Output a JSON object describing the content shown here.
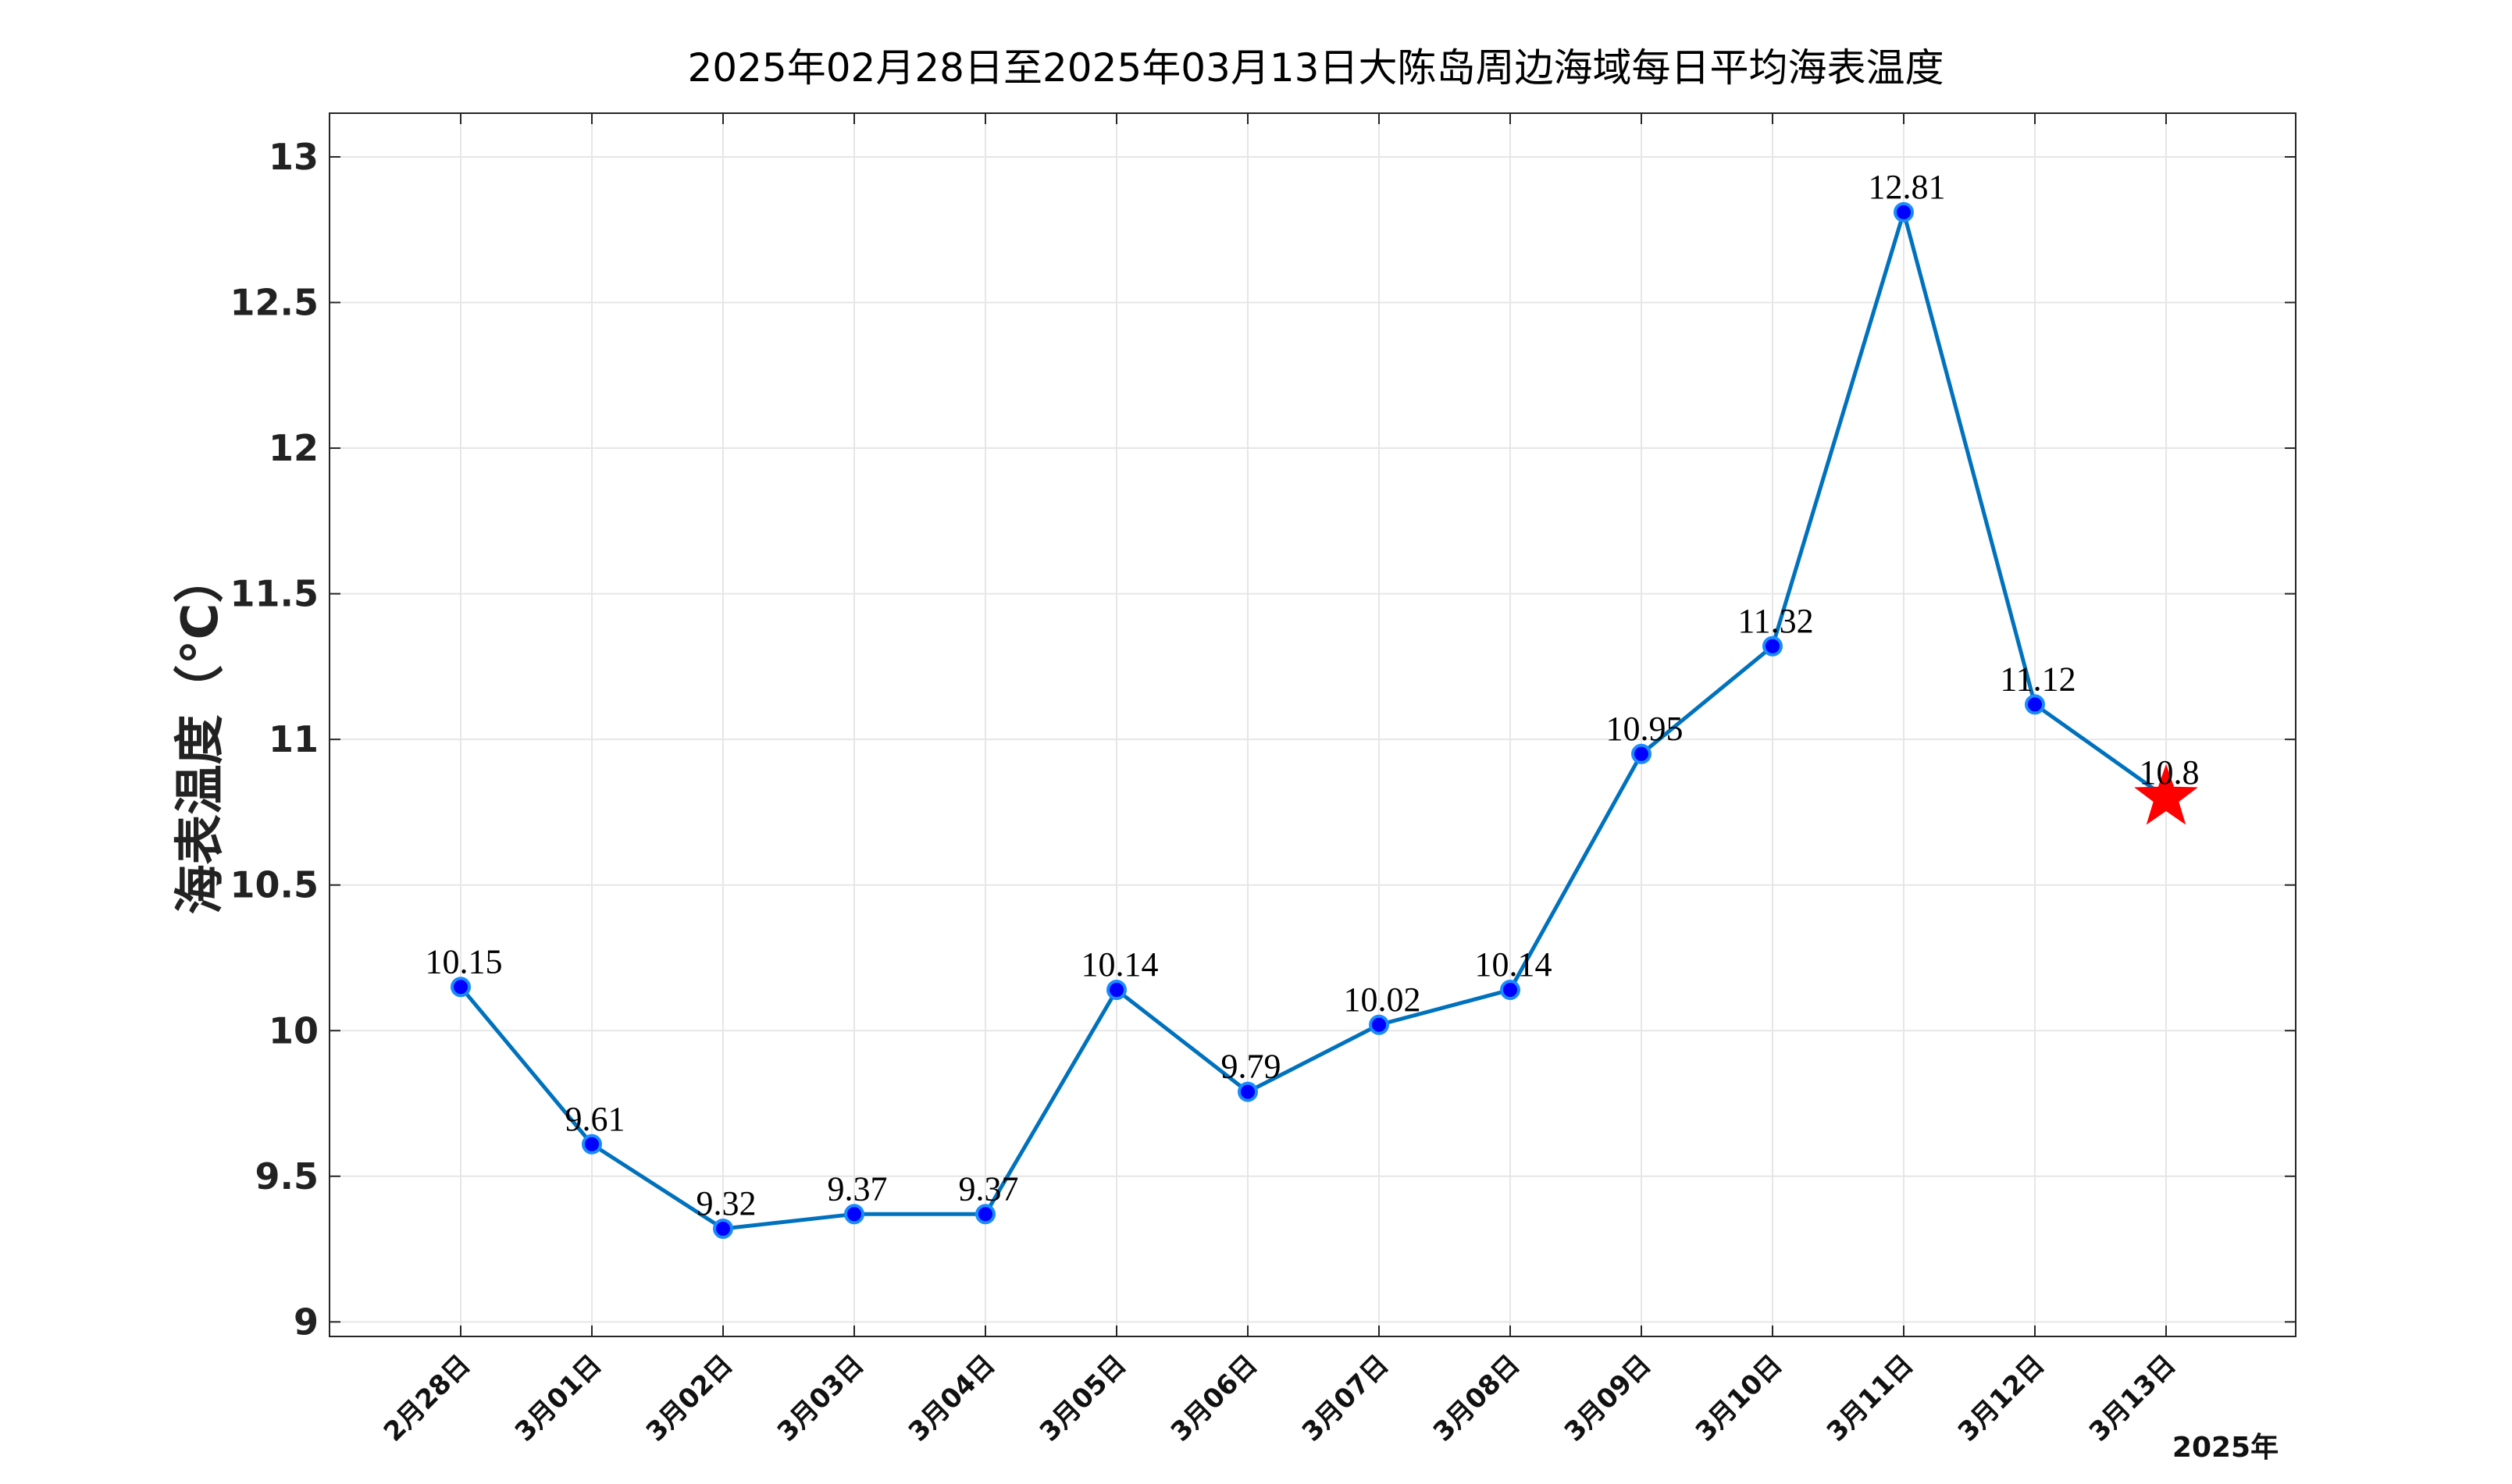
{
  "chart_data": {
    "type": "line",
    "title": "2025年02月28日至2025年03月13日大陈岛周边海域每日平均海表温度",
    "xlabel": "",
    "ylabel": "海表温度（°C）",
    "year_label": "2025年",
    "categories": [
      "2月28日",
      "3月01日",
      "3月02日",
      "3月03日",
      "3月04日",
      "3月05日",
      "3月06日",
      "3月07日",
      "3月08日",
      "3月09日",
      "3月10日",
      "3月11日",
      "3月12日",
      "3月13日"
    ],
    "values": [
      10.15,
      9.61,
      9.32,
      9.37,
      9.37,
      10.14,
      9.79,
      10.02,
      10.14,
      10.95,
      11.32,
      12.81,
      11.12,
      10.8
    ],
    "data_labels": [
      "10.15",
      "9.61",
      "9.32",
      "9.37",
      "9.37",
      "10.14",
      "9.79",
      "10.02",
      "10.14",
      "10.95",
      "11.32",
      "12.81",
      "11.12",
      "10.8"
    ],
    "ylim": [
      8.95,
      13.15
    ],
    "yticks": [
      9,
      9.5,
      10,
      10.5,
      11,
      11.5,
      12,
      12.5,
      13
    ],
    "ytick_labels": [
      "9",
      "9.5",
      "10",
      "10.5",
      "11",
      "11.5",
      "12",
      "12.5",
      "13"
    ],
    "grid": true,
    "line_color": "#0072BD",
    "marker_color": "#0000FF",
    "highlight_last": {
      "marker": "star",
      "color": "#FF0000"
    }
  }
}
